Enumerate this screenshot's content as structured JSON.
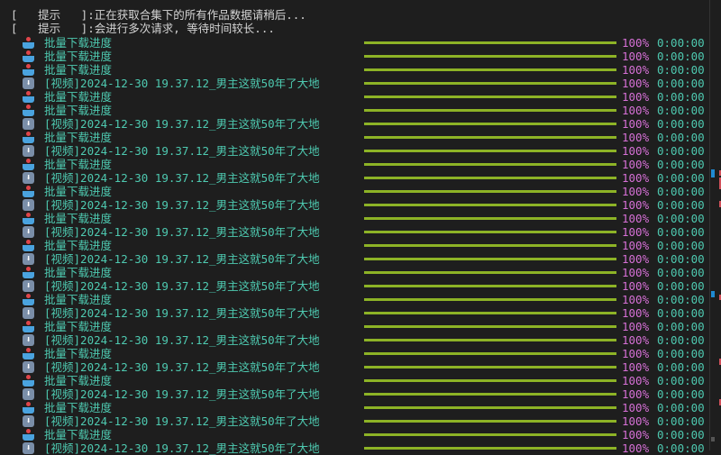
{
  "hints": [
    {
      "tag": "[   提示   ]",
      "text": ":正在获取合集下的所有作品数据请稍后..."
    },
    {
      "tag": "[   提示   ]",
      "text": ":会进行多次请求, 等待时间较长..."
    }
  ],
  "labels": {
    "batch": "批量下载进度",
    "video": "[视频]2024-12-30 19.37.12_男主这就50年了大地"
  },
  "icons": {
    "batch": "inbox-tray-icon",
    "video": "down-arrow-icon"
  },
  "progress": {
    "percent_text": "100%",
    "time_text": "0:00:00",
    "value": 100
  },
  "rows": [
    "batch",
    "batch",
    "batch",
    "video",
    "batch",
    "batch",
    "video",
    "batch",
    "video",
    "batch",
    "video",
    "batch",
    "video",
    "batch",
    "video",
    "batch",
    "video",
    "batch",
    "video",
    "batch",
    "video",
    "batch",
    "video",
    "batch",
    "video",
    "batch",
    "video",
    "batch",
    "video",
    "batch",
    "video"
  ],
  "colors": {
    "label": "#4ec9b0",
    "percent": "#d670d6",
    "bar": "#8db326",
    "background": "#1e1e1e"
  }
}
